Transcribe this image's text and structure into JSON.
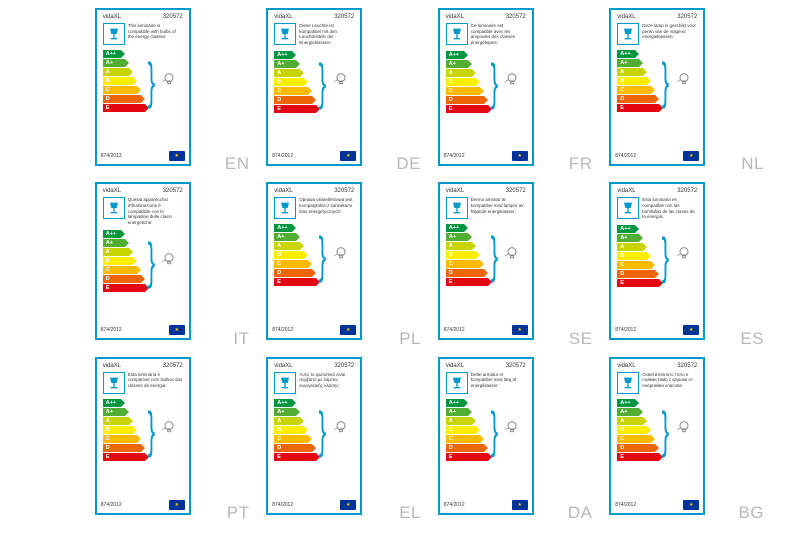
{
  "brand": "vidaXL",
  "model": "320572",
  "regulation": "874/2012",
  "energy_classes": [
    "A++",
    "A+",
    "A",
    "B",
    "C",
    "D",
    "E"
  ],
  "arrow_colors": [
    "#009640",
    "#52ae32",
    "#c8d400",
    "#ffed00",
    "#fbba00",
    "#ec6608",
    "#e30613"
  ],
  "border_color": "#0099cc",
  "bg_color": "#ffffff",
  "lang_color": "#b8b8b8",
  "labels": [
    {
      "lang": "EN",
      "desc": "This luminaire is compatible with bulbs of the energy classes:"
    },
    {
      "lang": "DE",
      "desc": "Diese Leuchte ist kompatibel mit den Leuchtmitteln der Energieklassen:"
    },
    {
      "lang": "FR",
      "desc": "Ce luminaire est compatible avec les ampoules des classes énergétiques:"
    },
    {
      "lang": "NL",
      "desc": "Deze lamp is geschikt voor peren van de volgend energieklassen:"
    },
    {
      "lang": "IT",
      "desc": "Questa apparecchio d'illuminazione è compatibile con le lampadine delle classi energetiche:"
    },
    {
      "lang": "PL",
      "desc": "Oprawa oświetleniowa jest kompatybilna z żarówkami klas energetycznych:"
    },
    {
      "lang": "SE",
      "desc": "Denna armatur är kompatibel med lampor av följande energiklasser:"
    },
    {
      "lang": "ES",
      "desc": "Esta luminaria es compatible con las bombillas de las clases de la energía:"
    },
    {
      "lang": "PT",
      "desc": "Esta luminária é compatível com bulbos das classes de energia:"
    },
    {
      "lang": "EL",
      "desc": "Αυτό το φωτιστικό είναι συμβατό με λάμπες ενεργειακής κλάσης:"
    },
    {
      "lang": "DA",
      "desc": "Dette armatur er kompatibel med læg af energiklasser:"
    },
    {
      "lang": "BG",
      "desc": "Осветителното тяло е съвместимо с крушки от енергийни класове:"
    }
  ]
}
